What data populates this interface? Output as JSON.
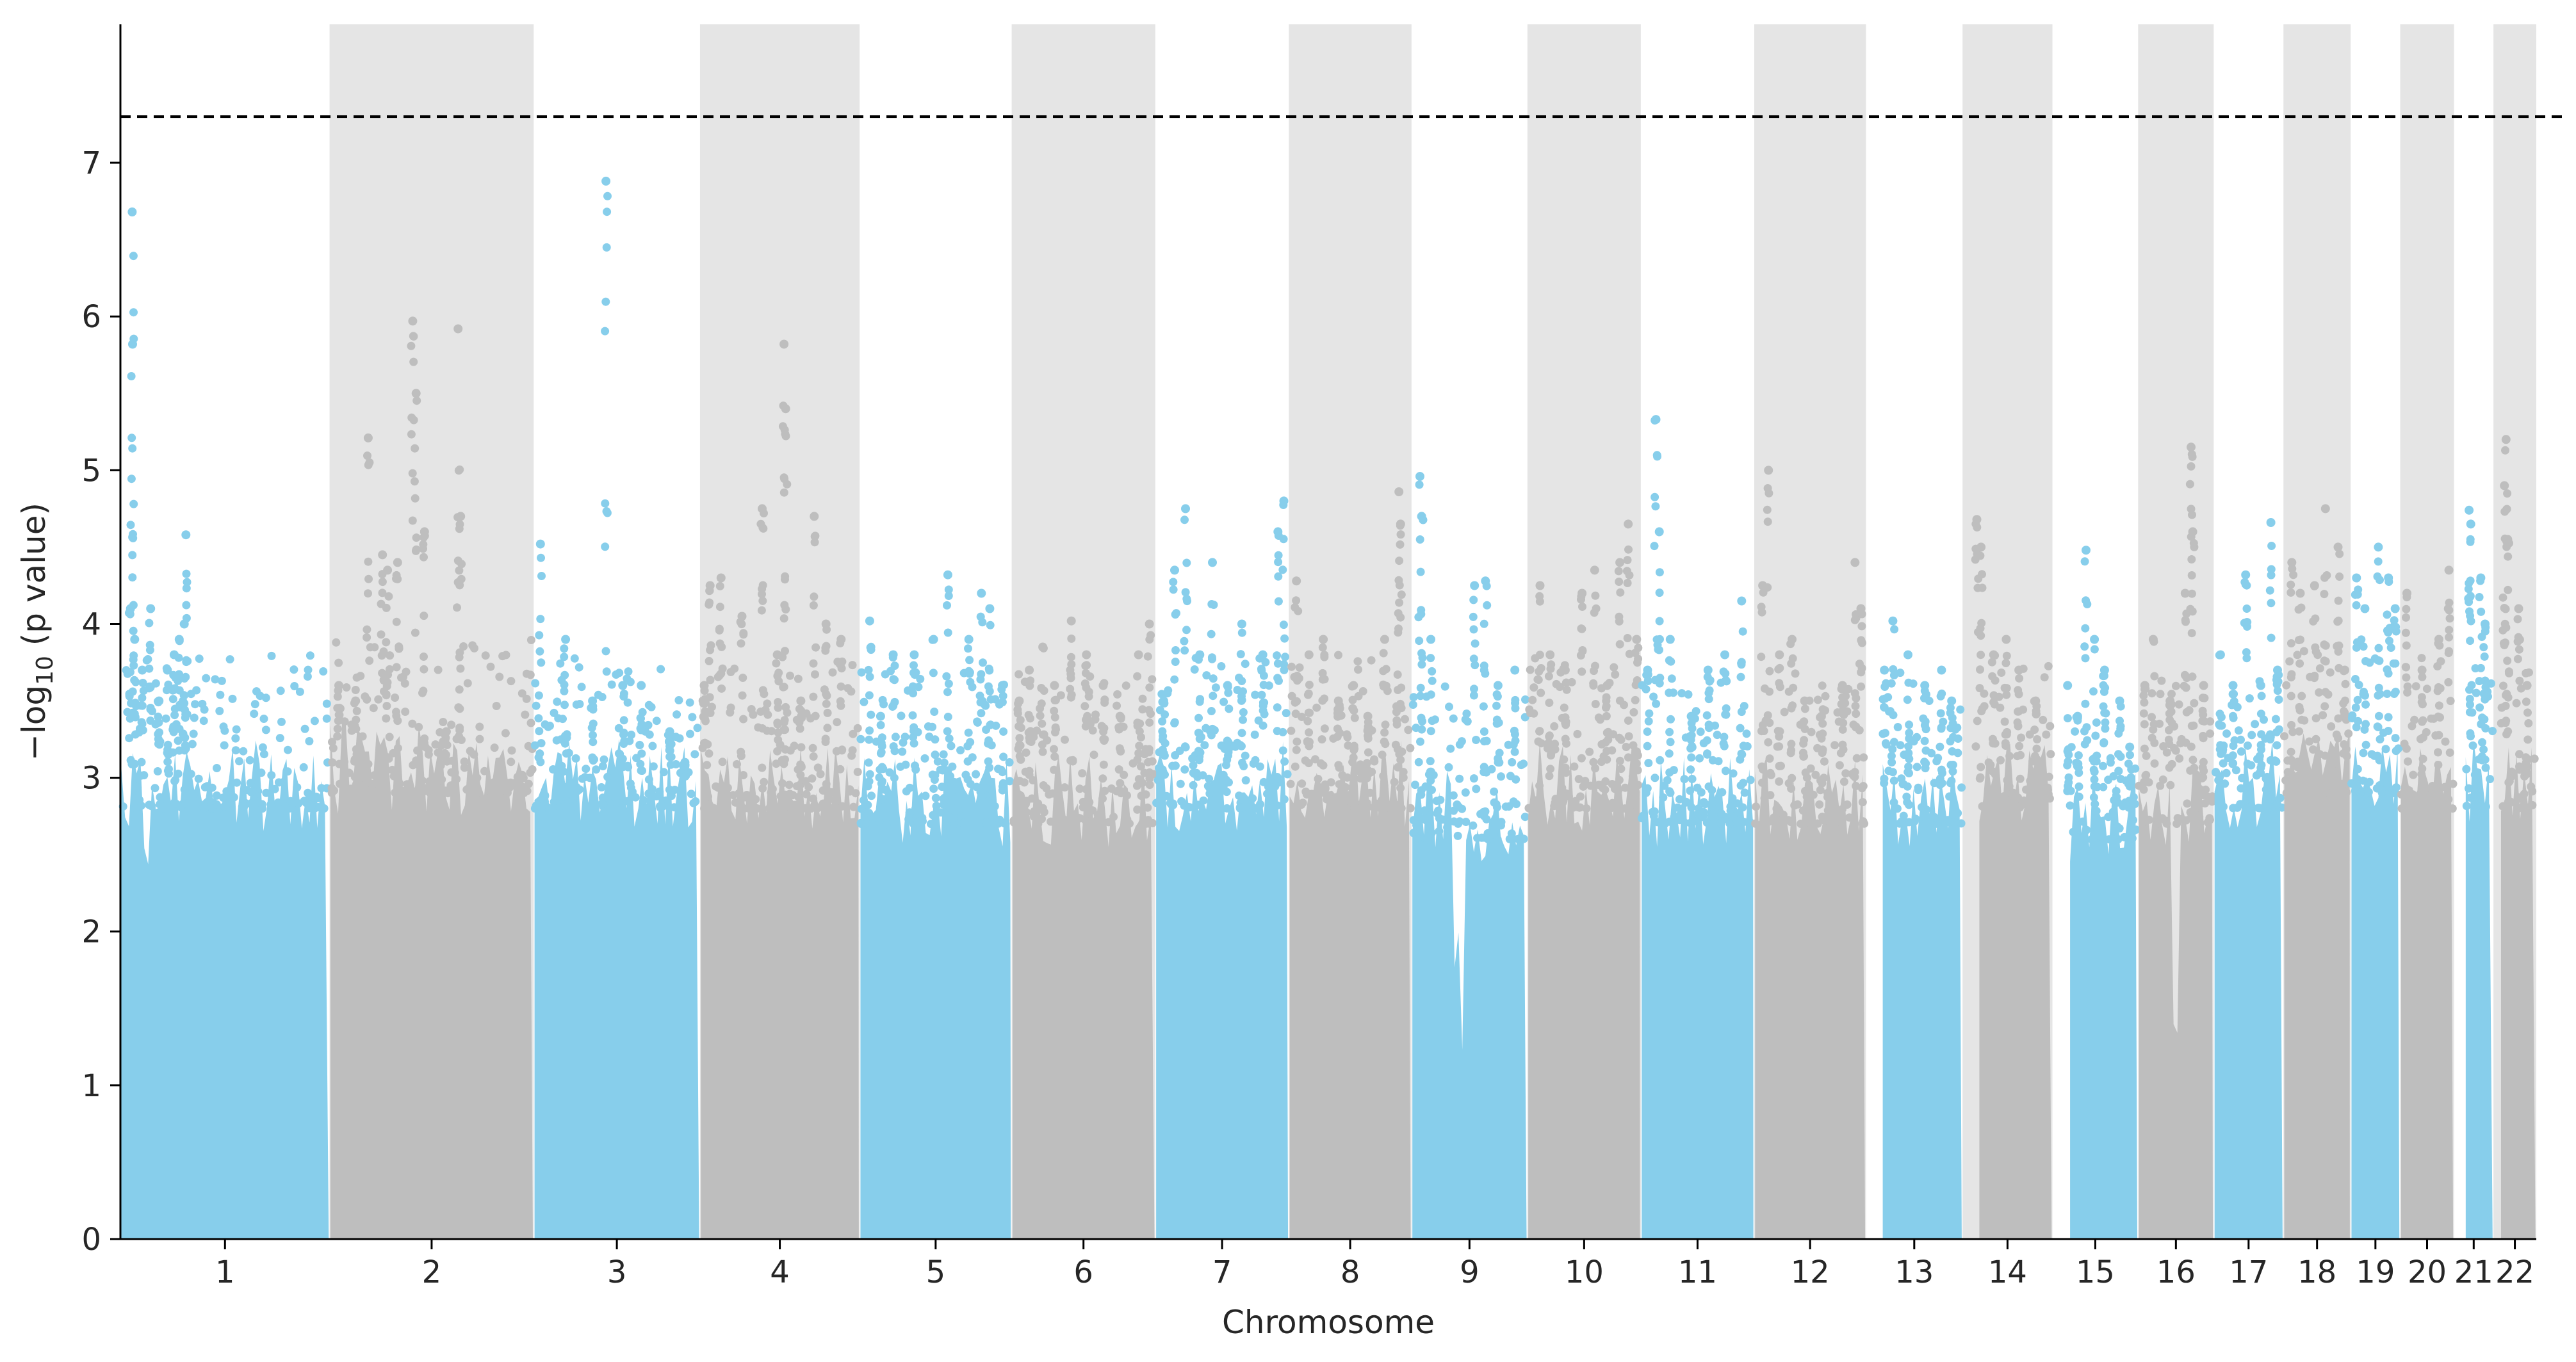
{
  "chart_data": {
    "type": "scatter",
    "subtype": "manhattan",
    "title": "",
    "xlabel": "Chromosome",
    "ylabel_parts": {
      "prefix": "−log",
      "sub": "10",
      "suffix": " (p value)"
    },
    "ylim": [
      0,
      7.9
    ],
    "yticks": [
      0,
      1,
      2,
      3,
      4,
      5,
      6,
      7
    ],
    "significance_threshold": 7.3,
    "threshold_line_color": "#000000",
    "colors": {
      "odd_chromosome": "#87CEEB",
      "even_chromosome": "#BEBEBE",
      "even_band": "#E5E5E5"
    },
    "chromosomes": [
      {
        "label": "1",
        "start": 0,
        "end": 249,
        "peaks": [
          [
            12,
            4.1
          ],
          [
            14,
            6.68
          ],
          [
            14.5,
            5.82
          ],
          [
            17,
            3.9
          ],
          [
            26,
            3.7
          ],
          [
            36,
            4.1
          ],
          [
            46,
            3.5
          ],
          [
            56,
            3.7
          ],
          [
            64,
            3.8
          ],
          [
            70,
            3.9
          ],
          [
            76,
            4.0
          ],
          [
            78,
            4.58
          ]
        ],
        "base": 3.0,
        "dips": [
          [
            32,
            2.2
          ]
        ]
      },
      {
        "label": "2",
        "start": 249,
        "end": 492,
        "peaks": [
          [
            260,
            3.6
          ],
          [
            280,
            3.5
          ],
          [
            295,
            5.21
          ],
          [
            312,
            4.45
          ],
          [
            318,
            4.35
          ],
          [
            330,
            4.4
          ],
          [
            348,
            5.97
          ],
          [
            352,
            5.5
          ],
          [
            362,
            4.6
          ],
          [
            388,
            3.3
          ],
          [
            402,
            5.92
          ],
          [
            405,
            4.7
          ]
        ],
        "base": 3.1
      },
      {
        "label": "3",
        "start": 492,
        "end": 690,
        "peaks": [
          [
            500,
            4.52
          ],
          [
            530,
            3.9
          ],
          [
            562,
            3.5
          ],
          [
            578,
            6.88
          ],
          [
            598,
            3.6
          ],
          [
            620,
            3.6
          ],
          [
            654,
            3.3
          ],
          [
            672,
            3.1
          ]
        ],
        "base": 3.0
      },
      {
        "label": "4",
        "start": 690,
        "end": 880,
        "peaks": [
          [
            695,
            3.6
          ],
          [
            702,
            4.25
          ],
          [
            715,
            4.3
          ],
          [
            740,
            4.05
          ],
          [
            764,
            4.75
          ],
          [
            782,
            3.8
          ],
          [
            790,
            5.82
          ],
          [
            792,
            5.4
          ],
          [
            810,
            3.5
          ],
          [
            826,
            4.7
          ],
          [
            840,
            4.0
          ],
          [
            858,
            3.9
          ]
        ],
        "base": 3.0
      },
      {
        "label": "5",
        "start": 880,
        "end": 1061,
        "peaks": [
          [
            892,
            4.02
          ],
          [
            905,
            3.4
          ],
          [
            920,
            3.8
          ],
          [
            945,
            3.8
          ],
          [
            968,
            3.9
          ],
          [
            985,
            4.32
          ],
          [
            1010,
            3.9
          ],
          [
            1025,
            4.2
          ],
          [
            1035,
            4.1
          ],
          [
            1050,
            3.6
          ]
        ],
        "base": 2.9
      },
      {
        "label": "6",
        "start": 1061,
        "end": 1232,
        "peaks": [
          [
            1070,
            3.5
          ],
          [
            1082,
            3.7
          ],
          [
            1098,
            3.85
          ],
          [
            1112,
            3.6
          ],
          [
            1132,
            4.02
          ],
          [
            1150,
            3.8
          ],
          [
            1170,
            3.6
          ],
          [
            1190,
            3.4
          ],
          [
            1212,
            3.8
          ],
          [
            1225,
            4.0
          ]
        ],
        "base": 2.9
      },
      {
        "label": "7",
        "start": 1232,
        "end": 1391,
        "peaks": [
          [
            1242,
            3.5
          ],
          [
            1255,
            4.35
          ],
          [
            1268,
            4.75
          ],
          [
            1285,
            3.8
          ],
          [
            1300,
            4.4
          ],
          [
            1318,
            3.6
          ],
          [
            1335,
            4.0
          ],
          [
            1360,
            3.8
          ],
          [
            1378,
            4.6
          ],
          [
            1385,
            4.8
          ]
        ],
        "base": 3.0
      },
      {
        "label": "8",
        "start": 1391,
        "end": 1537,
        "peaks": [
          [
            1400,
            4.28
          ],
          [
            1415,
            3.8
          ],
          [
            1432,
            3.9
          ],
          [
            1450,
            3.5
          ],
          [
            1468,
            3.6
          ],
          [
            1485,
            3.4
          ],
          [
            1505,
            3.9
          ],
          [
            1522,
            4.86
          ],
          [
            1524,
            4.65
          ]
        ],
        "base": 3.0
      },
      {
        "label": "9",
        "start": 1537,
        "end": 1675,
        "peaks": [
          [
            1547,
            4.96
          ],
          [
            1549,
            4.7
          ],
          [
            1560,
            3.9
          ],
          [
            1612,
            4.25
          ],
          [
            1625,
            4.28
          ],
          [
            1640,
            3.6
          ],
          [
            1660,
            3.7
          ]
        ],
        "base": 2.8,
        "dips": [
          [
            1590,
            1.7
          ],
          [
            1598,
            0.9
          ]
        ]
      },
      {
        "label": "10",
        "start": 1675,
        "end": 1810,
        "peaks": [
          [
            1690,
            4.25
          ],
          [
            1702,
            3.8
          ],
          [
            1720,
            3.7
          ],
          [
            1740,
            4.2
          ],
          [
            1755,
            4.35
          ],
          [
            1770,
            3.6
          ],
          [
            1785,
            4.4
          ],
          [
            1795,
            4.65
          ],
          [
            1805,
            3.9
          ]
        ],
        "base": 3.0
      },
      {
        "label": "11",
        "start": 1810,
        "end": 1945,
        "peaks": [
          [
            1818,
            3.7
          ],
          [
            1828,
            5.33
          ],
          [
            1832,
            4.6
          ],
          [
            1845,
            3.9
          ],
          [
            1870,
            3.4
          ],
          [
            1890,
            3.7
          ],
          [
            1910,
            3.8
          ],
          [
            1930,
            4.15
          ]
        ],
        "base": 2.9
      },
      {
        "label": "12",
        "start": 1945,
        "end": 2078,
        "peaks": [
          [
            1955,
            4.25
          ],
          [
            1962,
            5.0
          ],
          [
            1975,
            3.8
          ],
          [
            1990,
            3.9
          ],
          [
            2005,
            3.5
          ],
          [
            2025,
            3.4
          ],
          [
            2050,
            3.6
          ],
          [
            2065,
            4.4
          ],
          [
            2072,
            4.1
          ]
        ],
        "base": 2.9
      },
      {
        "label": "13",
        "start": 2078,
        "end": 2193,
        "peaks": [
          [
            2100,
            3.7
          ],
          [
            2110,
            4.02
          ],
          [
            2128,
            3.8
          ],
          [
            2148,
            3.6
          ],
          [
            2168,
            3.7
          ],
          [
            2180,
            3.5
          ]
        ],
        "base": 2.9,
        "gap_start": 19
      },
      {
        "label": "14",
        "start": 2193,
        "end": 2300,
        "peaks": [
          [
            2210,
            4.68
          ],
          [
            2215,
            4.5
          ],
          [
            2230,
            3.8
          ],
          [
            2245,
            3.9
          ],
          [
            2260,
            3.7
          ],
          [
            2280,
            3.5
          ]
        ],
        "base": 3.0,
        "gap_start": 19
      },
      {
        "label": "15",
        "start": 2300,
        "end": 2402,
        "peaks": [
          [
            2318,
            3.6
          ],
          [
            2330,
            3.4
          ],
          [
            2340,
            4.48
          ],
          [
            2350,
            3.9
          ],
          [
            2362,
            3.7
          ],
          [
            2380,
            3.5
          ],
          [
            2392,
            3.2
          ]
        ],
        "base": 2.8,
        "gap_start": 20
      },
      {
        "label": "16",
        "start": 2402,
        "end": 2492,
        "peaks": [
          [
            2410,
            3.6
          ],
          [
            2420,
            3.9
          ],
          [
            2440,
            3.5
          ],
          [
            2458,
            4.2
          ],
          [
            2465,
            5.15
          ],
          [
            2467,
            4.6
          ],
          [
            2480,
            3.6
          ]
        ],
        "base": 2.9,
        "dips": [
          [
            2445,
            1.1
          ]
        ]
      },
      {
        "label": "17",
        "start": 2492,
        "end": 2575,
        "peaks": [
          [
            2500,
            3.8
          ],
          [
            2515,
            3.6
          ],
          [
            2530,
            4.32
          ],
          [
            2548,
            3.6
          ],
          [
            2560,
            4.66
          ],
          [
            2568,
            3.7
          ]
        ],
        "base": 3.0
      },
      {
        "label": "18",
        "start": 2575,
        "end": 2655,
        "peaks": [
          [
            2585,
            4.4
          ],
          [
            2595,
            4.2
          ],
          [
            2612,
            4.25
          ],
          [
            2625,
            4.75
          ],
          [
            2640,
            4.5
          ],
          [
            2648,
            3.7
          ]
        ],
        "base": 3.1
      },
      {
        "label": "19",
        "start": 2655,
        "end": 2714,
        "peaks": [
          [
            2662,
            4.3
          ],
          [
            2672,
            4.1
          ],
          [
            2688,
            4.5
          ],
          [
            2700,
            4.3
          ],
          [
            2708,
            4.1
          ]
        ],
        "base": 3.1
      },
      {
        "label": "20",
        "start": 2714,
        "end": 2778,
        "peaks": [
          [
            2722,
            4.2
          ],
          [
            2740,
            3.7
          ],
          [
            2760,
            3.9
          ],
          [
            2772,
            4.35
          ]
        ],
        "base": 3.0
      },
      {
        "label": "21",
        "start": 2778,
        "end": 2825,
        "peaks": [
          [
            2796,
            4.74
          ],
          [
            2798,
            4.65
          ],
          [
            2810,
            4.3
          ],
          [
            2815,
            4.0
          ]
        ],
        "base": 3.0,
        "gap_start": 13
      },
      {
        "label": "22",
        "start": 2825,
        "end": 2876,
        "peaks": [
          [
            2838,
            4.9
          ],
          [
            2840,
            5.2
          ],
          [
            2842,
            4.55
          ],
          [
            2855,
            4.1
          ],
          [
            2865,
            3.6
          ]
        ],
        "base": 3.0,
        "gap_start": 8
      }
    ]
  }
}
